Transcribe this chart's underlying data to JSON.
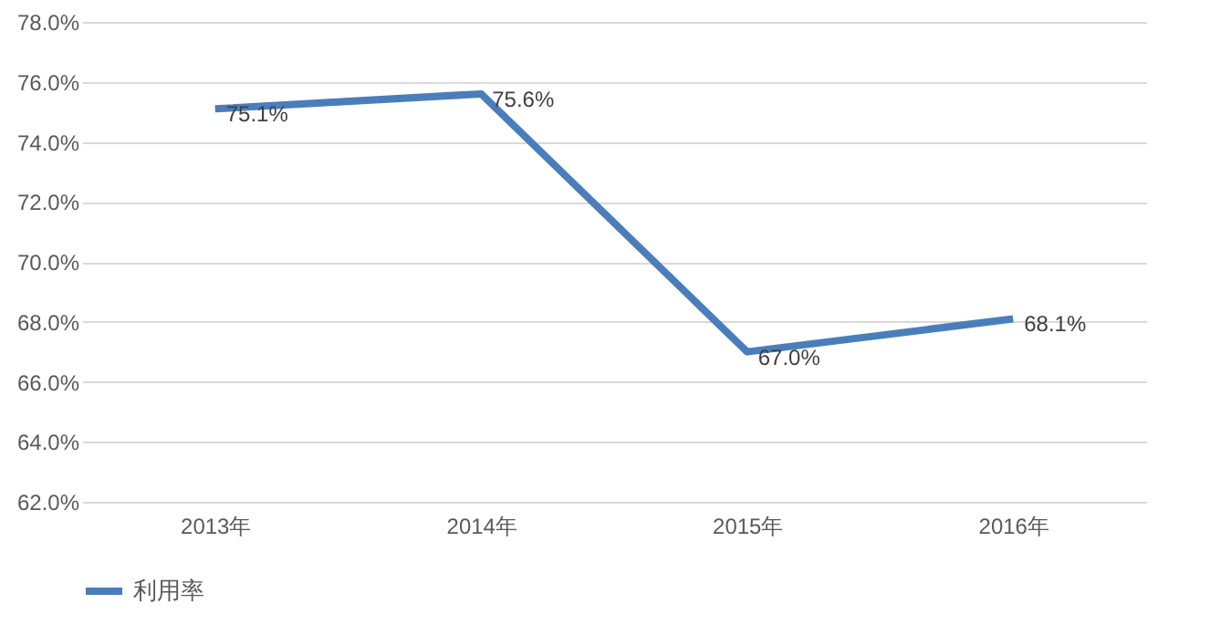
{
  "chart_data": {
    "type": "line",
    "categories": [
      "2013年",
      "2014年",
      "2015年",
      "2016年"
    ],
    "series": [
      {
        "name": "利用率",
        "color": "#4a7ebb",
        "values": [
          75.1,
          75.6,
          67.0,
          68.1
        ],
        "value_labels": [
          "75.1%",
          "75.6%",
          "67.0%",
          "68.1%"
        ]
      }
    ],
    "ylim": [
      62,
      78
    ],
    "yticks": [
      {
        "value": 62,
        "label": "62.0%"
      },
      {
        "value": 64,
        "label": "64.0%"
      },
      {
        "value": 66,
        "label": "66.0%"
      },
      {
        "value": 68,
        "label": "68.0%"
      },
      {
        "value": 70,
        "label": "70.0%"
      },
      {
        "value": 72,
        "label": "72.0%"
      },
      {
        "value": 74,
        "label": "74.0%"
      },
      {
        "value": 76,
        "label": "76.0%"
      },
      {
        "value": 78,
        "label": "78.0%"
      }
    ],
    "grid": "y",
    "legend": "bottom",
    "marker": "none",
    "line_style": "solid"
  }
}
